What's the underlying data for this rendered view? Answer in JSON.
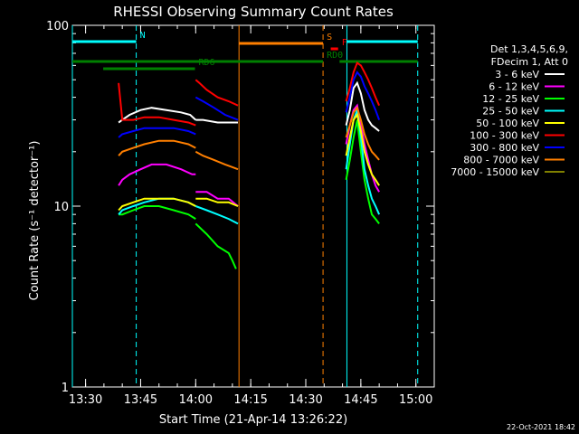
{
  "chart_data": {
    "type": "line",
    "title": "RHESSI Observing Summary Count Rates",
    "xlabel": "Start Time (21-Apr-14 13:26:22)",
    "ylabel": "Count Rate (s⁻¹ detector⁻¹)",
    "y_scale": "log",
    "ylim": [
      1,
      100
    ],
    "xlim_minutes": [
      806.4,
      905.0
    ],
    "x_ticks": [
      {
        "label": "13:30",
        "min": 810
      },
      {
        "label": "13:45",
        "min": 825
      },
      {
        "label": "14:00",
        "min": 840
      },
      {
        "label": "14:15",
        "min": 855
      },
      {
        "label": "14:30",
        "min": 870
      },
      {
        "label": "14:45",
        "min": 885
      },
      {
        "label": "15:00",
        "min": 900
      }
    ],
    "y_ticks": [
      {
        "label": "100",
        "value": 100
      },
      {
        "label": "10",
        "value": 10
      },
      {
        "label": "1",
        "value": 1
      }
    ],
    "legend_header": [
      "Det 1,3,4,5,6,9,",
      "FDecim 1, Att 0"
    ],
    "legend_placement": "right",
    "series": [
      {
        "name": "3 - 6 keV",
        "color": "#ffffff",
        "segments": [
          {
            "x": [
              818.5,
              819,
              820,
              822,
              825,
              828,
              832,
              836,
              838.5,
              840
            ],
            "y": [
              null,
              29,
              30,
              32,
              34,
              35,
              34,
              33,
              32,
              30
            ]
          },
          {
            "x": [
              840,
              842,
              846,
              850,
              851.5
            ],
            "y": [
              30,
              30,
              29,
              29,
              29
            ]
          },
          {
            "x": [
              881,
              882,
              883,
              884,
              885,
              886,
              887,
              888,
              889,
              890
            ],
            "y": [
              28,
              34,
              45,
              48,
              42,
              34,
              30,
              28,
              27,
              26
            ]
          }
        ]
      },
      {
        "name": "6 - 12 keV",
        "color": "#ff00ff",
        "segments": [
          {
            "x": [
              819,
              820,
              822,
              825,
              828,
              832,
              836,
              839,
              840
            ],
            "y": [
              13,
              14,
              15,
              16,
              17,
              17,
              16,
              15,
              15
            ]
          },
          {
            "x": [
              840,
              843,
              846,
              849,
              851.5
            ],
            "y": [
              12,
              12,
              11,
              11,
              10
            ]
          },
          {
            "x": [
              881,
              882,
              883,
              884,
              885,
              886,
              887,
              888,
              889,
              890
            ],
            "y": [
              22,
              28,
              34,
              36,
              28,
              22,
              18,
              15,
              13,
              12
            ]
          }
        ]
      },
      {
        "name": "12 - 25 keV",
        "color": "#00ff00",
        "segments": [
          {
            "x": [
              819,
              820,
              823,
              826,
              830,
              834,
              838,
              840
            ],
            "y": [
              9,
              9,
              9.5,
              10,
              10,
              9.5,
              9,
              8.5
            ]
          },
          {
            "x": [
              840,
              843,
              846,
              849,
              850,
              851
            ],
            "y": [
              8,
              7,
              6,
              5.5,
              5,
              4.5
            ]
          },
          {
            "x": [
              881,
              882,
              883,
              884,
              885,
              886,
              887,
              888,
              889,
              890
            ],
            "y": [
              14,
              18,
              24,
              30,
              20,
              14,
              11,
              9,
              8.5,
              8
            ]
          }
        ]
      },
      {
        "name": "25 - 50 keV",
        "color": "#00ffff",
        "segments": [
          {
            "x": [
              819,
              820,
              823,
              826,
              830,
              834,
              838,
              840
            ],
            "y": [
              9,
              9.5,
              10,
              10.5,
              11,
              11,
              10.5,
              10
            ]
          },
          {
            "x": [
              840,
              843,
              846,
              849,
              851.5
            ],
            "y": [
              10,
              9.5,
              9,
              8.5,
              8
            ]
          },
          {
            "x": [
              881,
              882,
              883,
              884,
              885,
              886,
              887,
              888,
              889,
              890
            ],
            "y": [
              16,
              22,
              30,
              34,
              24,
              16,
              13,
              11,
              10,
              9
            ]
          }
        ]
      },
      {
        "name": "50 - 100 keV",
        "color": "#ffff00",
        "segments": [
          {
            "x": [
              819,
              820,
              823,
              826,
              830,
              834,
              838,
              840
            ],
            "y": [
              9.5,
              10,
              10.5,
              11,
              11,
              11,
              10.5,
              10
            ]
          },
          {
            "x": [
              840,
              843,
              846,
              849,
              851.5
            ],
            "y": [
              11,
              11,
              10.5,
              10.5,
              10
            ]
          },
          {
            "x": [
              881,
              882,
              883,
              884,
              885,
              886,
              887,
              888,
              889,
              890
            ],
            "y": [
              19,
              24,
              30,
              32,
              26,
              20,
              17,
              15,
              14,
              13
            ]
          }
        ]
      },
      {
        "name": "100 - 300 keV",
        "color": "#ff0000",
        "segments": [
          {
            "x": [
              818.5,
              819,
              820,
              823,
              826,
              830,
              834,
              838,
              840
            ],
            "y": [
              null,
              48,
              30,
              30,
              31,
              31,
              30,
              29,
              28
            ]
          },
          {
            "x": [
              840,
              841,
              843,
              846,
              849,
              851.5
            ],
            "y": [
              50,
              48,
              44,
              40,
              38,
              36
            ]
          },
          {
            "x": [
              881,
              882,
              883,
              884,
              885,
              886,
              887,
              888,
              889,
              890
            ],
            "y": [
              38,
              45,
              55,
              62,
              60,
              55,
              50,
              45,
              40,
              36
            ]
          }
        ]
      },
      {
        "name": "300 - 800 keV",
        "color": "#0000ff",
        "segments": [
          {
            "x": [
              819,
              820,
              823,
              826,
              830,
              834,
              838,
              840
            ],
            "y": [
              24,
              25,
              26,
              27,
              27,
              27,
              26,
              25
            ]
          },
          {
            "x": [
              840,
              842,
              845,
              848,
              851.5
            ],
            "y": [
              40,
              38,
              35,
              32,
              30
            ]
          },
          {
            "x": [
              881,
              882,
              883,
              884,
              885,
              886,
              887,
              888,
              889,
              890
            ],
            "y": [
              33,
              40,
              50,
              55,
              52,
              46,
              42,
              38,
              34,
              30
            ]
          }
        ]
      },
      {
        "name": "800 - 7000 keV",
        "color": "#ff7f00",
        "segments": [
          {
            "x": [
              819,
              820,
              823,
              826,
              830,
              834,
              838,
              840
            ],
            "y": [
              19,
              20,
              21,
              22,
              23,
              23,
              22,
              21
            ]
          },
          {
            "x": [
              840,
              842,
              845,
              848,
              851.5
            ],
            "y": [
              20,
              19,
              18,
              17,
              16
            ]
          },
          {
            "x": [
              881,
              882,
              883,
              884,
              885,
              886,
              887,
              888,
              889,
              890
            ],
            "y": [
              24,
              28,
              33,
              35,
              30,
              25,
              22,
              20,
              19,
              18
            ]
          }
        ]
      },
      {
        "name": "7000 - 15000 keV",
        "color": "#808000",
        "segments": []
      }
    ],
    "vertical_markers": [
      {
        "kind": "solid",
        "color": "#00ffff",
        "x": 806.4
      },
      {
        "kind": "dashed",
        "color": "#00ffff",
        "x": 823.8
      },
      {
        "kind": "solid",
        "color": "#ff7f00",
        "x": 851.8
      },
      {
        "kind": "dashed",
        "color": "#ff7f00",
        "x": 874.7
      },
      {
        "kind": "solid",
        "color": "#00ffff",
        "x": 881.2
      },
      {
        "kind": "dashed",
        "color": "#00ffff",
        "x": 900.5
      }
    ],
    "flag_bars": [
      {
        "label": "N",
        "color": "#00ffff",
        "ranges": [
          [
            806.4,
            823.8
          ],
          [
            881.2,
            900.5
          ]
        ],
        "level": 0.15
      },
      {
        "label": "S",
        "color": "#ff7f00",
        "ranges": [
          [
            851.8,
            874.7
          ]
        ],
        "level": 0.2
      },
      {
        "label": "F",
        "color": "#ff0000",
        "ranges": [
          [
            876.8,
            878.8
          ]
        ],
        "level": 0.35
      },
      {
        "label": "RD0",
        "color": "#008000",
        "ranges": [
          [
            806.4,
            874.7
          ],
          [
            879.2,
            900.5
          ]
        ],
        "level": 0.7
      },
      {
        "label": "RD6",
        "color": "#008000",
        "ranges": [
          [
            814.8,
            839.8
          ]
        ],
        "level": 0.9
      }
    ]
  },
  "footer": {
    "timestamp": "22-Oct-2021 18:42"
  }
}
